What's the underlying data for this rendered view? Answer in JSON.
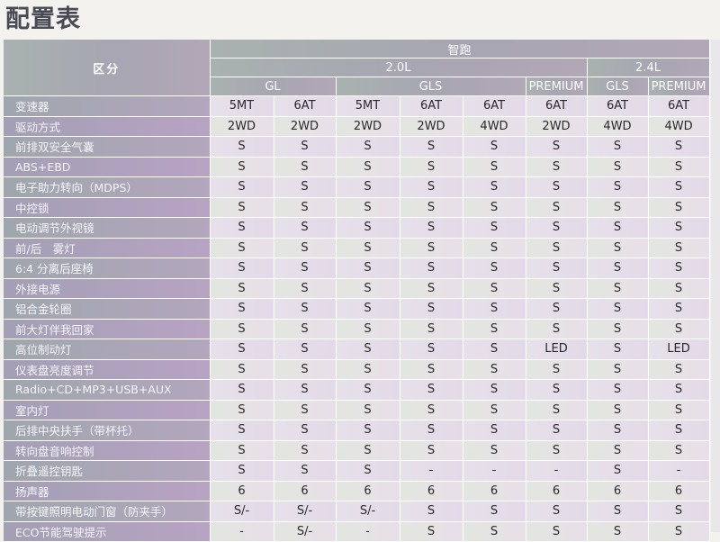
{
  "title": "配置表",
  "header": {
    "corner": "区分",
    "model": "智跑",
    "engines": [
      "2.0L",
      "2.4L"
    ],
    "trims": [
      "GL",
      "GLS",
      "PREMIUM",
      "GLS",
      "PREMIUM"
    ]
  },
  "rows": [
    {
      "label": "变速器",
      "values": [
        "5MT",
        "6AT",
        "5MT",
        "6AT",
        "6AT",
        "6AT",
        "6AT",
        "6AT"
      ]
    },
    {
      "label": "驱动方式",
      "values": [
        "2WD",
        "2WD",
        "2WD",
        "2WD",
        "4WD",
        "2WD",
        "4WD",
        "4WD"
      ]
    },
    {
      "label": "前排双安全气囊",
      "values": [
        "S",
        "S",
        "S",
        "S",
        "S",
        "S",
        "S",
        "S"
      ]
    },
    {
      "label": "ABS+EBD",
      "values": [
        "S",
        "S",
        "S",
        "S",
        "S",
        "S",
        "S",
        "S"
      ]
    },
    {
      "label": "电子助力转向（MDPS）",
      "values": [
        "S",
        "S",
        "S",
        "S",
        "S",
        "S",
        "S",
        "S"
      ]
    },
    {
      "label": "中控锁",
      "values": [
        "S",
        "S",
        "S",
        "S",
        "S",
        "S",
        "S",
        "S"
      ]
    },
    {
      "label": "电动调节外视镜",
      "values": [
        "S",
        "S",
        "S",
        "S",
        "S",
        "S",
        "S",
        "S"
      ]
    },
    {
      "label": "前/后　雾灯",
      "values": [
        "S",
        "S",
        "S",
        "S",
        "S",
        "S",
        "S",
        "S"
      ]
    },
    {
      "label": "6:4 分离后座椅",
      "values": [
        "S",
        "S",
        "S",
        "S",
        "S",
        "S",
        "S",
        "S"
      ]
    },
    {
      "label": "外接电源",
      "values": [
        "S",
        "S",
        "S",
        "S",
        "S",
        "S",
        "S",
        "S"
      ]
    },
    {
      "label": "铝合金轮圈",
      "values": [
        "S",
        "S",
        "S",
        "S",
        "S",
        "S",
        "S",
        "S"
      ]
    },
    {
      "label": "前大灯伴我回家",
      "values": [
        "S",
        "S",
        "S",
        "S",
        "S",
        "S",
        "S",
        "S"
      ]
    },
    {
      "label": "高位制动灯",
      "values": [
        "S",
        "S",
        "S",
        "S",
        "S",
        "LED",
        "S",
        "LED"
      ]
    },
    {
      "label": "仪表盘亮度调节",
      "values": [
        "S",
        "S",
        "S",
        "S",
        "S",
        "S",
        "S",
        "S"
      ]
    },
    {
      "label": "Radio+CD+MP3+USB+AUX",
      "values": [
        "S",
        "S",
        "S",
        "S",
        "S",
        "S",
        "S",
        "S"
      ]
    },
    {
      "label": "室内灯",
      "values": [
        "S",
        "S",
        "S",
        "S",
        "S",
        "S",
        "S",
        "S"
      ]
    },
    {
      "label": "后排中央扶手（带杯托）",
      "values": [
        "S",
        "S",
        "S",
        "S",
        "S",
        "S",
        "S",
        "S"
      ]
    },
    {
      "label": "转向盘音响控制",
      "values": [
        "S",
        "S",
        "S",
        "S",
        "S",
        "S",
        "S",
        "S"
      ]
    },
    {
      "label": "折叠遥控钥匙",
      "values": [
        "S",
        "S",
        "S",
        "-",
        "-",
        "-",
        "S",
        "-"
      ]
    },
    {
      "label": "扬声器",
      "values": [
        "6",
        "6",
        "6",
        "6",
        "6",
        "6",
        "6",
        "6"
      ]
    },
    {
      "label": "带按键照明电动门窗（防夹手）",
      "values": [
        "S/-",
        "S/-",
        "S/-",
        "S",
        "S",
        "S",
        "S",
        "S"
      ]
    },
    {
      "label": "ECO节能驾驶提示",
      "values": [
        "-",
        "S/-",
        "-",
        "S",
        "S",
        "S",
        "S",
        "S"
      ]
    }
  ]
}
